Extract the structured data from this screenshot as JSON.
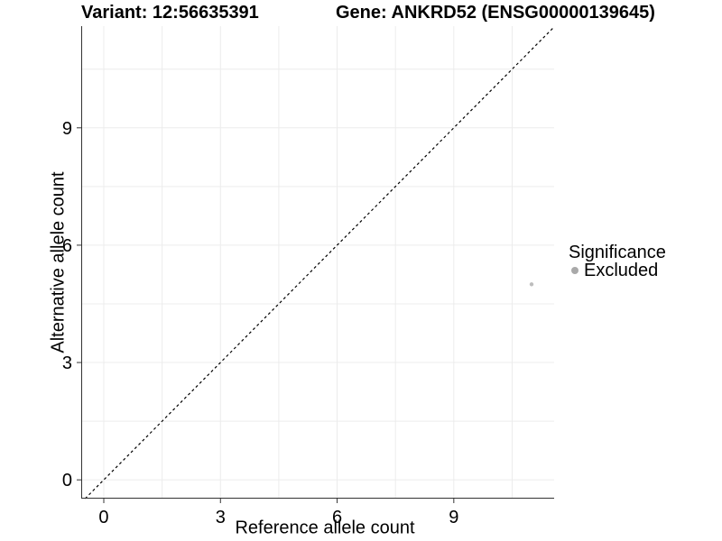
{
  "figure": {
    "title_left": "Variant: 12:56635391",
    "title_right": "Gene: ANKRD52 (ENSG00000139645)"
  },
  "chart_data": {
    "type": "scatter",
    "title": "Variant: 12:56635391  Gene: ANKRD52 (ENSG00000139645)",
    "xlabel": "Reference allele count",
    "ylabel": "Alternative allele count",
    "xlim": [
      -0.58,
      11.58
    ],
    "ylim": [
      -0.48,
      11.6
    ],
    "x_ticks": [
      0,
      3,
      6,
      9
    ],
    "y_ticks": [
      0,
      3,
      6,
      9
    ],
    "x_minor_gridlines": [
      1.5,
      4.5,
      7.5,
      10.5
    ],
    "y_minor_gridlines": [
      1.5,
      4.5,
      7.5,
      10.5
    ],
    "grid": true,
    "legend_position": "right",
    "identity_line": {
      "slope": 1,
      "intercept": 0,
      "style": "dashed",
      "color": "#000000"
    },
    "series": [
      {
        "name": "Excluded",
        "color": "#a9a9a9",
        "points": [
          {
            "x": 11,
            "y": 5
          }
        ]
      }
    ],
    "legend": {
      "title": "Significance",
      "items": [
        {
          "label": "Excluded",
          "color": "#a9a9a9"
        }
      ]
    }
  },
  "colors": {
    "gridline": "#ececec",
    "axis_line": "#333333",
    "tick_label": "#000000",
    "point": "#bdbdbd"
  }
}
